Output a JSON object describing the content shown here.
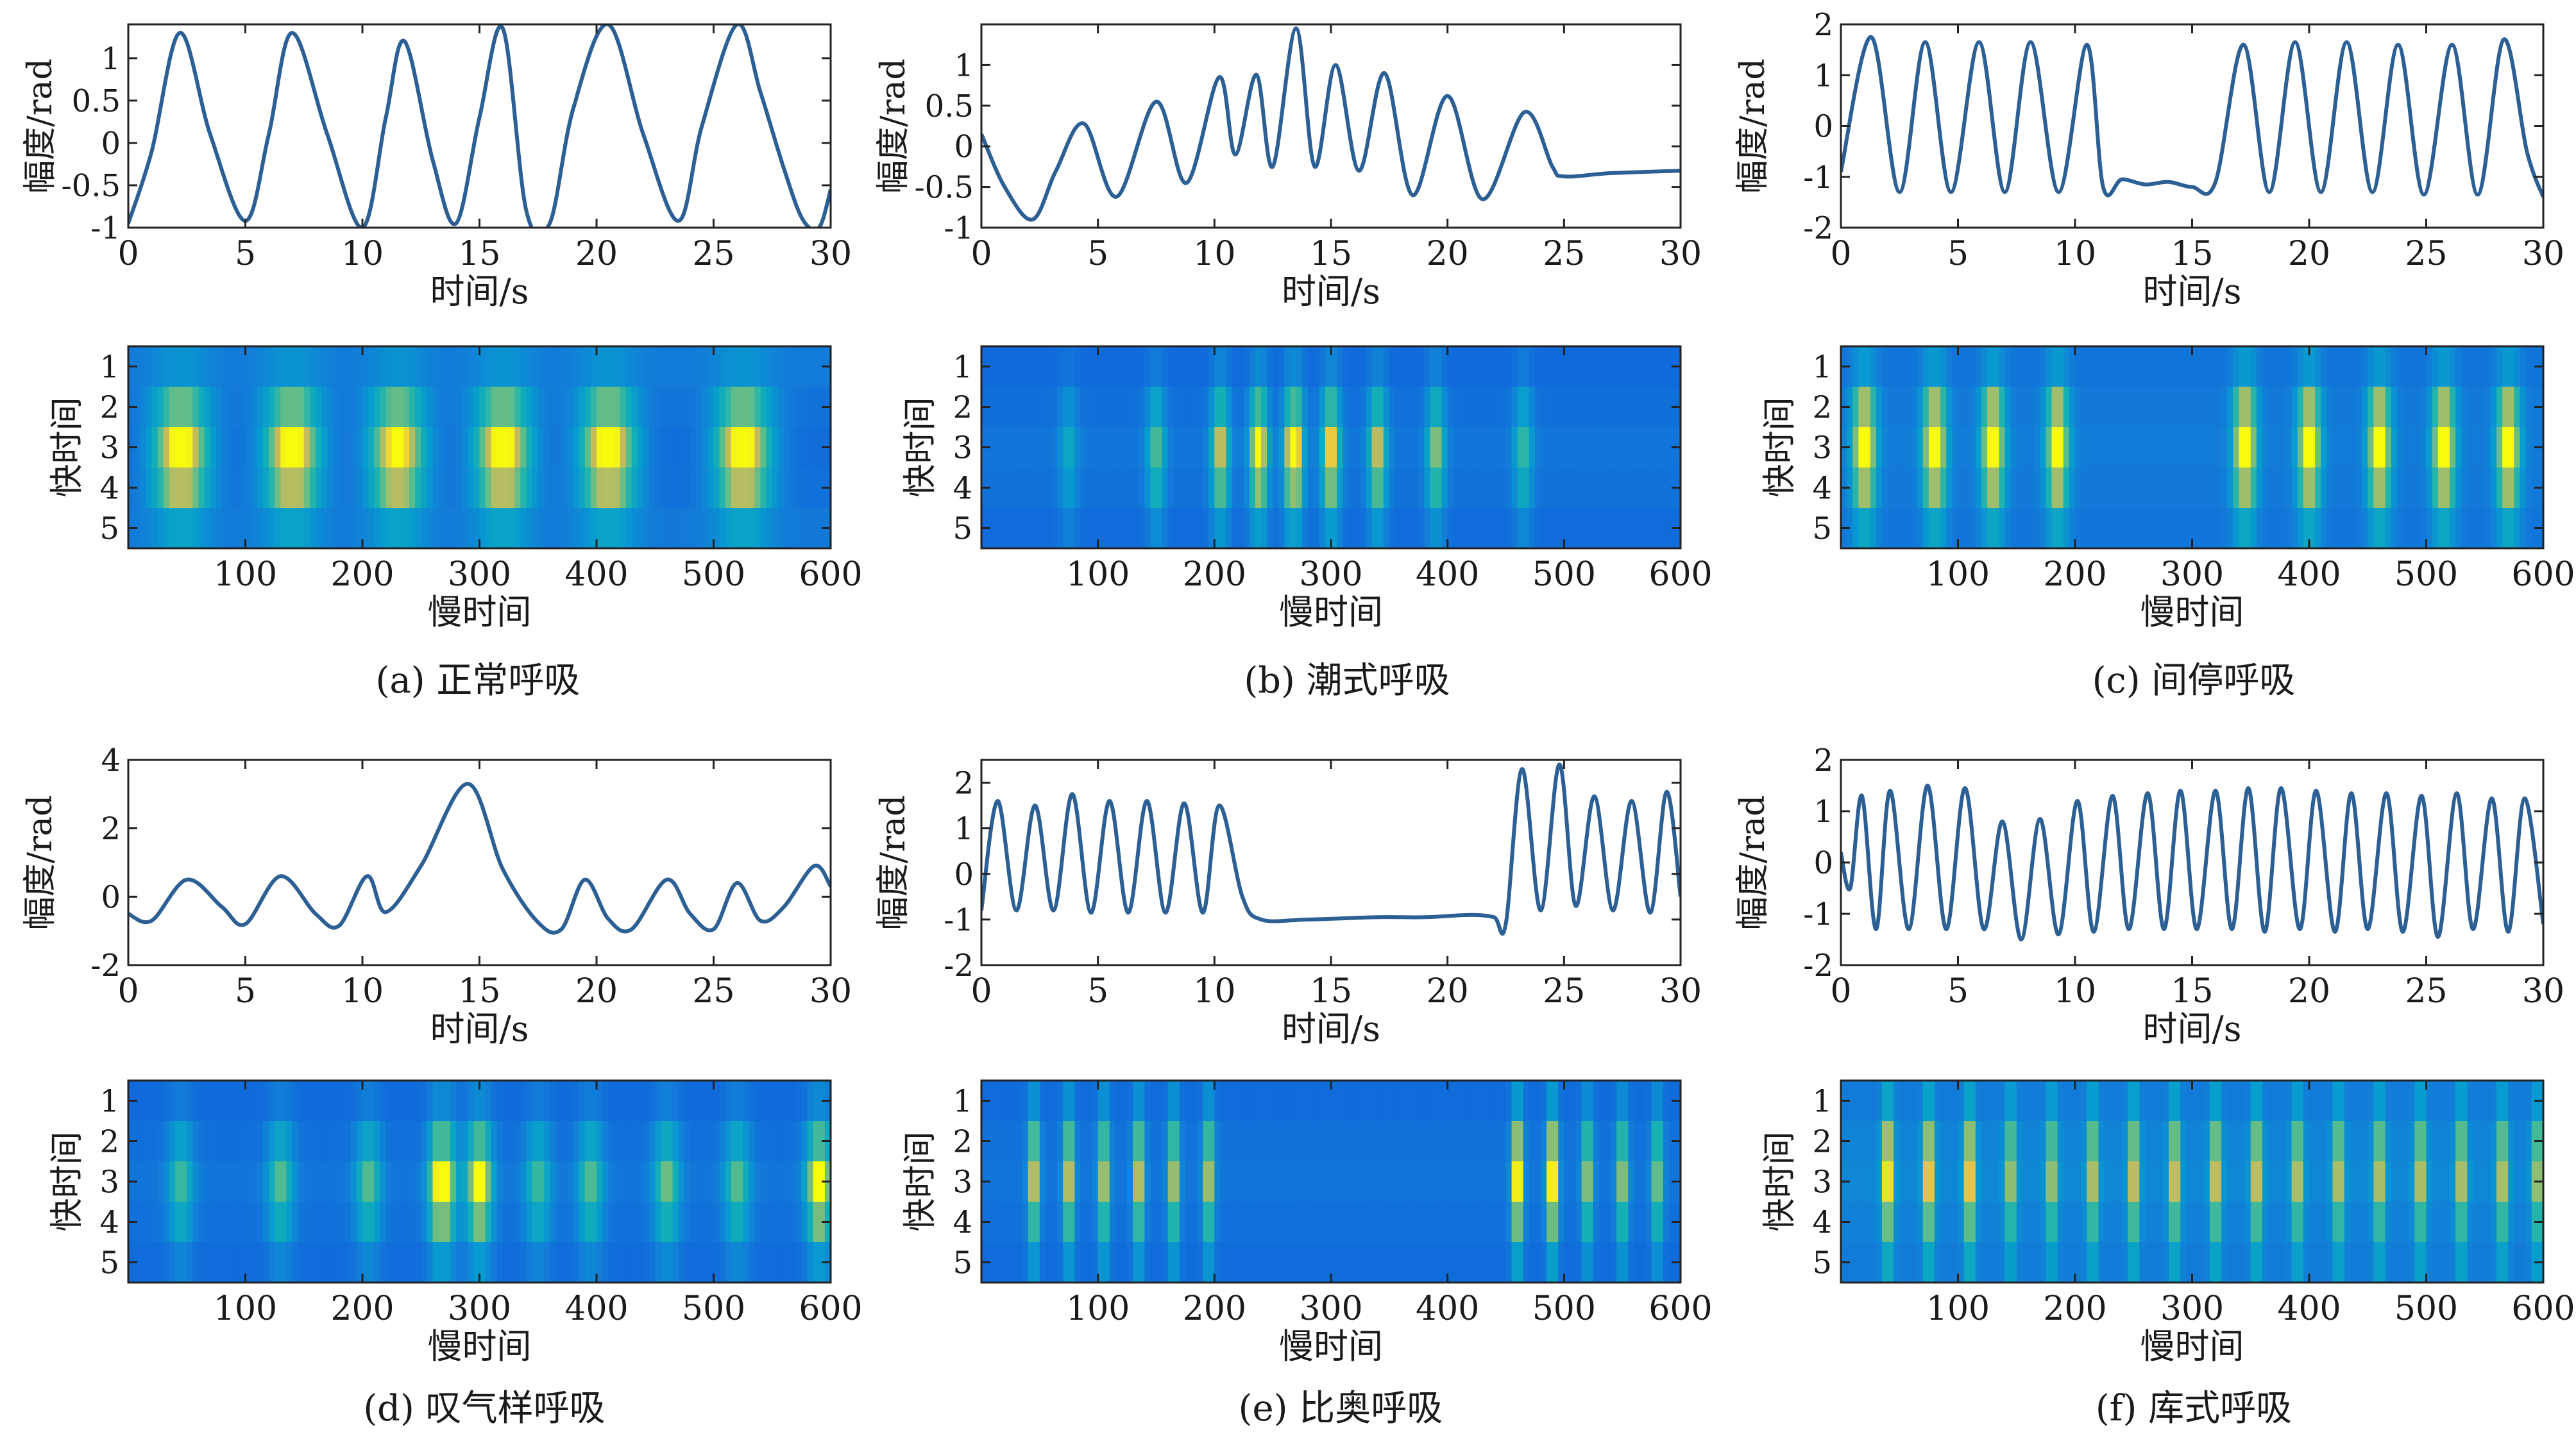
{
  "figure": {
    "colors": {
      "line": "#2c5f94",
      "axis": "#222222"
    },
    "colormap": "parula-like (blue-green-yellow)",
    "panels": [
      {
        "id": "a",
        "caption": "(a) 正常呼吸"
      },
      {
        "id": "b",
        "caption": "(b) 潮式呼吸"
      },
      {
        "id": "c",
        "caption": "(c) 间停呼吸"
      },
      {
        "id": "d",
        "caption": "(d) 叹气样呼吸"
      },
      {
        "id": "e",
        "caption": "(e) 比奥呼吸"
      },
      {
        "id": "f",
        "caption": "(f) 库式呼吸"
      }
    ]
  },
  "chart_data": [
    {
      "panel": "a",
      "chart": "waveform",
      "type": "line",
      "xlabel": "时间/s",
      "ylabel": "幅度/rad",
      "xlim": [
        0,
        30
      ],
      "ylim": [
        -1,
        1.4
      ],
      "xticks": [
        0,
        5,
        10,
        15,
        20,
        25,
        30
      ],
      "xticklabels": [
        "0",
        "5",
        "10",
        "15",
        "20",
        "25",
        "30"
      ],
      "yticks": [
        -1,
        -0.5,
        0,
        0.5,
        1
      ],
      "yticklabels": [
        "-1",
        "-0.5",
        "0",
        "0.5",
        "1"
      ],
      "x": [
        0,
        1,
        2.2,
        3.5,
        5,
        6,
        7,
        8.5,
        10,
        11,
        11.8,
        13,
        14,
        15,
        16,
        17,
        18,
        19,
        20.5,
        22,
        23.5,
        24.5,
        26,
        27,
        28,
        28.8,
        29.5,
        30
      ],
      "y": [
        -0.95,
        -0.1,
        1.3,
        0.1,
        -0.92,
        0.1,
        1.3,
        0.1,
        -1.0,
        0.3,
        1.2,
        -0.2,
        -0.95,
        0.3,
        1.35,
        -0.8,
        -0.95,
        0.4,
        1.4,
        0.1,
        -0.92,
        0.2,
        1.4,
        0.6,
        -0.3,
        -0.9,
        -1.0,
        -0.55
      ]
    },
    {
      "panel": "a",
      "chart": "heatmap",
      "type": "heatmap",
      "xlabel": "慢时间",
      "ylabel": "快时间",
      "xlim": [
        0,
        600
      ],
      "ylim": [
        0.5,
        5.5
      ],
      "xticks": [
        100,
        200,
        300,
        400,
        500,
        600
      ],
      "xticklabels": [
        "100",
        "200",
        "300",
        "400",
        "500",
        "600"
      ],
      "yticks": [
        1,
        2,
        3,
        4,
        5
      ],
      "yticklabels": [
        "1",
        "2",
        "3",
        "4",
        "5"
      ],
      "rows": 5,
      "row_weights": [
        0.15,
        0.62,
        1.0,
        0.78,
        0.28
      ],
      "peaks": [
        [
          45,
          1.0
        ],
        [
          140,
          1.0
        ],
        [
          230,
          0.95
        ],
        [
          320,
          1.0
        ],
        [
          410,
          1.0
        ],
        [
          525,
          1.0
        ]
      ],
      "peak_width": 24,
      "base": 0.08,
      "trough": 0.14,
      "floor": 0.3
    },
    {
      "panel": "b",
      "chart": "waveform",
      "type": "line",
      "xlabel": "时间/s",
      "ylabel": "幅度/rad",
      "xlim": [
        0,
        30
      ],
      "ylim": [
        -1,
        1.5
      ],
      "xticks": [
        0,
        5,
        10,
        15,
        20,
        25,
        30
      ],
      "xticklabels": [
        "0",
        "5",
        "10",
        "15",
        "20",
        "25",
        "30"
      ],
      "yticks": [
        -1,
        -0.5,
        0,
        0.5,
        1
      ],
      "yticklabels": [
        "-1",
        "-0.5",
        "0",
        "0.5",
        "1"
      ],
      "x": [
        0,
        1,
        2.2,
        3.2,
        4.4,
        5.8,
        7.5,
        8.8,
        10.2,
        10.9,
        11.8,
        12.5,
        13.5,
        14.3,
        15.2,
        16.2,
        17.3,
        18.5,
        20,
        21.5,
        23.3,
        24.5,
        25,
        27,
        30
      ],
      "y": [
        0.15,
        -0.5,
        -0.9,
        -0.3,
        0.28,
        -0.62,
        0.55,
        -0.45,
        0.85,
        -0.1,
        0.88,
        -0.25,
        1.45,
        -0.25,
        1.0,
        -0.3,
        0.9,
        -0.6,
        0.62,
        -0.65,
        0.42,
        -0.25,
        -0.37,
        -0.33,
        -0.3
      ]
    },
    {
      "panel": "b",
      "chart": "heatmap",
      "type": "heatmap",
      "xlabel": "慢时间",
      "ylabel": "快时间",
      "xlim": [
        0,
        600
      ],
      "ylim": [
        0.5,
        5.5
      ],
      "xticks": [
        100,
        200,
        300,
        400,
        500,
        600
      ],
      "xticklabels": [
        "100",
        "200",
        "300",
        "400",
        "500",
        "600"
      ],
      "yticks": [
        1,
        2,
        3,
        4,
        5
      ],
      "yticklabels": [
        "1",
        "2",
        "3",
        "4",
        "5"
      ],
      "rows": 5,
      "row_weights": [
        0.2,
        0.6,
        1.0,
        0.75,
        0.35
      ],
      "peaks": [
        [
          75,
          0.3
        ],
        [
          150,
          0.5
        ],
        [
          205,
          0.7
        ],
        [
          238,
          0.85
        ],
        [
          268,
          1.0
        ],
        [
          300,
          0.8
        ],
        [
          340,
          0.7
        ],
        [
          390,
          0.6
        ],
        [
          465,
          0.45
        ]
      ],
      "peak_width": 8,
      "base": 0.2,
      "trough": 0.12,
      "floor": 0.2
    },
    {
      "panel": "c",
      "chart": "waveform",
      "type": "line",
      "xlabel": "时间/s",
      "ylabel": "幅度/rad",
      "xlim": [
        0,
        30
      ],
      "ylim": [
        -2,
        2
      ],
      "xticks": [
        0,
        5,
        10,
        15,
        20,
        25,
        30
      ],
      "xticklabels": [
        "0",
        "5",
        "10",
        "15",
        "20",
        "25",
        "30"
      ],
      "yticks": [
        -2,
        -1,
        0,
        1,
        2
      ],
      "yticklabels": [
        "-2",
        "-1",
        "0",
        "1",
        "2"
      ],
      "x": [
        0,
        1.3,
        2.5,
        3.6,
        4.7,
        5.9,
        7,
        8.1,
        9.3,
        10.5,
        11.2,
        12,
        13,
        14,
        15,
        16,
        17.2,
        18.3,
        19.4,
        20.5,
        21.6,
        22.7,
        23.8,
        24.9,
        26.1,
        27.2,
        28.3,
        29.3,
        30
      ],
      "y": [
        -0.9,
        1.75,
        -1.3,
        1.65,
        -1.3,
        1.65,
        -1.3,
        1.65,
        -1.3,
        1.6,
        -1.2,
        -1.05,
        -1.15,
        -1.1,
        -1.2,
        -1.1,
        1.6,
        -1.3,
        1.65,
        -1.3,
        1.65,
        -1.3,
        1.6,
        -1.35,
        1.6,
        -1.35,
        1.7,
        -0.5,
        -1.4
      ]
    },
    {
      "panel": "c",
      "chart": "heatmap",
      "type": "heatmap",
      "xlabel": "慢时间",
      "ylabel": "快时间",
      "xlim": [
        0,
        600
      ],
      "ylim": [
        0.5,
        5.5
      ],
      "xticks": [
        100,
        200,
        300,
        400,
        500,
        600
      ],
      "xticklabels": [
        "100",
        "200",
        "300",
        "400",
        "500",
        "600"
      ],
      "yticks": [
        1,
        2,
        3,
        4,
        5
      ],
      "yticklabels": [
        "1",
        "2",
        "3",
        "4",
        "5"
      ],
      "rows": 5,
      "row_weights": [
        0.25,
        0.75,
        1.0,
        0.75,
        0.35
      ],
      "peaks": [
        [
          20,
          0.95
        ],
        [
          80,
          0.95
        ],
        [
          130,
          0.9
        ],
        [
          185,
          0.85
        ],
        [
          345,
          0.95
        ],
        [
          400,
          0.9
        ],
        [
          460,
          0.9
        ],
        [
          515,
          0.9
        ],
        [
          570,
          0.9
        ]
      ],
      "peak_width": 10,
      "base": 0.2,
      "trough": 0.14,
      "floor": 0.25
    },
    {
      "panel": "d",
      "chart": "waveform",
      "type": "line",
      "xlabel": "时间/s",
      "ylabel": "幅度/rad",
      "xlim": [
        0,
        30
      ],
      "ylim": [
        -2,
        4
      ],
      "xticks": [
        0,
        5,
        10,
        15,
        20,
        25,
        30
      ],
      "xticklabels": [
        "0",
        "5",
        "10",
        "15",
        "20",
        "25",
        "30"
      ],
      "yticks": [
        -2,
        0,
        2,
        4
      ],
      "yticklabels": [
        "-2",
        "0",
        "2",
        "4"
      ],
      "x": [
        0,
        1,
        2.5,
        4,
        5,
        6.5,
        8,
        9,
        10.2,
        11,
        12.5,
        14.5,
        16,
        17.5,
        18.5,
        19.5,
        20.5,
        21.5,
        23,
        24,
        25,
        26,
        27,
        28,
        29.3,
        30
      ],
      "y": [
        -0.5,
        -0.7,
        0.5,
        -0.3,
        -0.8,
        0.6,
        -0.5,
        -0.85,
        0.6,
        -0.45,
        0.9,
        3.3,
        0.8,
        -0.75,
        -0.95,
        0.5,
        -0.65,
        -0.95,
        0.5,
        -0.5,
        -0.95,
        0.4,
        -0.7,
        -0.3,
        0.9,
        0.3
      ]
    },
    {
      "panel": "d",
      "chart": "heatmap",
      "type": "heatmap",
      "xlabel": "慢时间",
      "ylabel": "快时间",
      "xlim": [
        0,
        600
      ],
      "ylim": [
        0.5,
        5.5
      ],
      "xticks": [
        100,
        200,
        300,
        400,
        500,
        600
      ],
      "xticklabels": [
        "100",
        "200",
        "300",
        "400",
        "500",
        "600"
      ],
      "yticks": [
        1,
        2,
        3,
        4,
        5
      ],
      "yticklabels": [
        "1",
        "2",
        "3",
        "4",
        "5"
      ],
      "rows": 5,
      "row_weights": [
        0.2,
        0.6,
        1.0,
        0.7,
        0.3
      ],
      "peaks": [
        [
          45,
          0.45
        ],
        [
          130,
          0.5
        ],
        [
          205,
          0.5
        ],
        [
          268,
          1.0
        ],
        [
          300,
          0.85
        ],
        [
          350,
          0.45
        ],
        [
          395,
          0.5
        ],
        [
          460,
          0.55
        ],
        [
          520,
          0.5
        ],
        [
          590,
          0.85
        ]
      ],
      "peak_width": 11,
      "base": 0.2,
      "trough": 0.12,
      "floor": 0.2
    },
    {
      "panel": "e",
      "chart": "waveform",
      "type": "line",
      "xlabel": "时间/s",
      "ylabel": "幅度/rad",
      "xlim": [
        0,
        30
      ],
      "ylim": [
        -2,
        2.5
      ],
      "xticks": [
        0,
        5,
        10,
        15,
        20,
        25,
        30
      ],
      "xticklabels": [
        "0",
        "5",
        "10",
        "15",
        "20",
        "25",
        "30"
      ],
      "yticks": [
        -2,
        -1,
        0,
        1,
        2
      ],
      "yticklabels": [
        "-2",
        "-1",
        "0",
        "1",
        "2"
      ],
      "x": [
        0,
        0.7,
        1.5,
        2.3,
        3.1,
        3.9,
        4.7,
        5.5,
        6.3,
        7.1,
        7.9,
        8.7,
        9.5,
        10.2,
        11.2,
        12,
        14,
        17,
        19,
        21,
        22,
        22.5,
        23.2,
        24,
        24.8,
        25.5,
        26.3,
        27.1,
        27.9,
        28.7,
        29.4,
        30
      ],
      "y": [
        -0.8,
        1.6,
        -0.8,
        1.5,
        -0.8,
        1.75,
        -0.85,
        1.6,
        -0.85,
        1.6,
        -0.85,
        1.55,
        -0.85,
        1.5,
        -0.5,
        -1.0,
        -1.0,
        -0.95,
        -0.95,
        -0.9,
        -0.95,
        -1.1,
        2.3,
        -0.8,
        2.4,
        -0.7,
        1.7,
        -0.8,
        1.6,
        -0.85,
        1.8,
        -0.5
      ]
    },
    {
      "panel": "e",
      "chart": "heatmap",
      "type": "heatmap",
      "xlabel": "慢时间",
      "ylabel": "快时间",
      "xlim": [
        0,
        600
      ],
      "ylim": [
        0.5,
        5.5
      ],
      "xticks": [
        100,
        200,
        300,
        400,
        500,
        600
      ],
      "xticklabels": [
        "100",
        "200",
        "300",
        "400",
        "500",
        "600"
      ],
      "yticks": [
        1,
        2,
        3,
        4,
        5
      ],
      "yticklabels": [
        "1",
        "2",
        "3",
        "4",
        "5"
      ],
      "rows": 5,
      "row_weights": [
        0.3,
        0.75,
        1.0,
        0.7,
        0.35
      ],
      "peaks": [
        [
          45,
          0.8
        ],
        [
          75,
          0.8
        ],
        [
          105,
          0.75
        ],
        [
          135,
          0.8
        ],
        [
          165,
          0.75
        ],
        [
          195,
          0.75
        ],
        [
          460,
          1.0
        ],
        [
          490,
          1.0
        ],
        [
          520,
          0.7
        ],
        [
          550,
          0.7
        ],
        [
          580,
          0.65
        ]
      ],
      "peak_width": 5,
      "base": 0.2,
      "trough": 0.12,
      "floor": 0.2
    },
    {
      "panel": "f",
      "chart": "waveform",
      "type": "line",
      "xlabel": "时间/s",
      "ylabel": "幅度/rad",
      "xlim": [
        0,
        30
      ],
      "ylim": [
        -2,
        2
      ],
      "xticks": [
        0,
        5,
        10,
        15,
        20,
        25,
        30
      ],
      "xticklabels": [
        "0",
        "5",
        "10",
        "15",
        "20",
        "25",
        "30"
      ],
      "yticks": [
        -2,
        -1,
        0,
        1,
        2
      ],
      "yticklabels": [
        "-2",
        "-1",
        "0",
        "1",
        "2"
      ],
      "x": [
        0,
        0.4,
        0.9,
        1.5,
        2.1,
        2.9,
        3.7,
        4.5,
        5.3,
        6.1,
        6.9,
        7.7,
        8.5,
        9.3,
        10.1,
        10.8,
        11.6,
        12.3,
        13.1,
        13.8,
        14.5,
        15.2,
        16,
        16.7,
        17.4,
        18.1,
        18.8,
        19.6,
        20.3,
        21.1,
        21.8,
        22.5,
        23.3,
        24,
        24.8,
        25.5,
        26.3,
        27,
        27.8,
        28.5,
        29.2,
        30
      ],
      "y": [
        0.2,
        -0.5,
        1.3,
        -1.3,
        1.4,
        -1.3,
        1.5,
        -1.3,
        1.45,
        -1.3,
        0.8,
        -1.5,
        0.85,
        -1.4,
        1.2,
        -1.35,
        1.3,
        -1.3,
        1.35,
        -1.3,
        1.4,
        -1.3,
        1.4,
        -1.3,
        1.45,
        -1.35,
        1.45,
        -1.3,
        1.4,
        -1.35,
        1.35,
        -1.3,
        1.35,
        -1.35,
        1.3,
        -1.45,
        1.35,
        -1.3,
        1.25,
        -1.35,
        1.25,
        -1.2
      ]
    },
    {
      "panel": "f",
      "chart": "heatmap",
      "type": "heatmap",
      "xlabel": "慢时间",
      "ylabel": "快时间",
      "xlim": [
        0,
        600
      ],
      "ylim": [
        0.5,
        5.5
      ],
      "xticks": [
        100,
        200,
        300,
        400,
        500,
        600
      ],
      "xticklabels": [
        "100",
        "200",
        "300",
        "400",
        "500",
        "600"
      ],
      "yticks": [
        1,
        2,
        3,
        4,
        5
      ],
      "yticklabels": [
        "1",
        "2",
        "3",
        "4",
        "5"
      ],
      "rows": 5,
      "row_weights": [
        0.35,
        0.8,
        1.0,
        0.7,
        0.4
      ],
      "peaks": [
        [
          40,
          0.9
        ],
        [
          75,
          0.85
        ],
        [
          110,
          0.85
        ],
        [
          145,
          0.65
        ],
        [
          180,
          0.65
        ],
        [
          215,
          0.7
        ],
        [
          250,
          0.75
        ],
        [
          285,
          0.75
        ],
        [
          320,
          0.75
        ],
        [
          355,
          0.75
        ],
        [
          390,
          0.7
        ],
        [
          425,
          0.7
        ],
        [
          460,
          0.7
        ],
        [
          495,
          0.7
        ],
        [
          530,
          0.7
        ],
        [
          565,
          0.7
        ],
        [
          595,
          0.65
        ]
      ],
      "peak_width": 5,
      "base": 0.25,
      "trough": 0.12,
      "floor": 0.25
    }
  ]
}
